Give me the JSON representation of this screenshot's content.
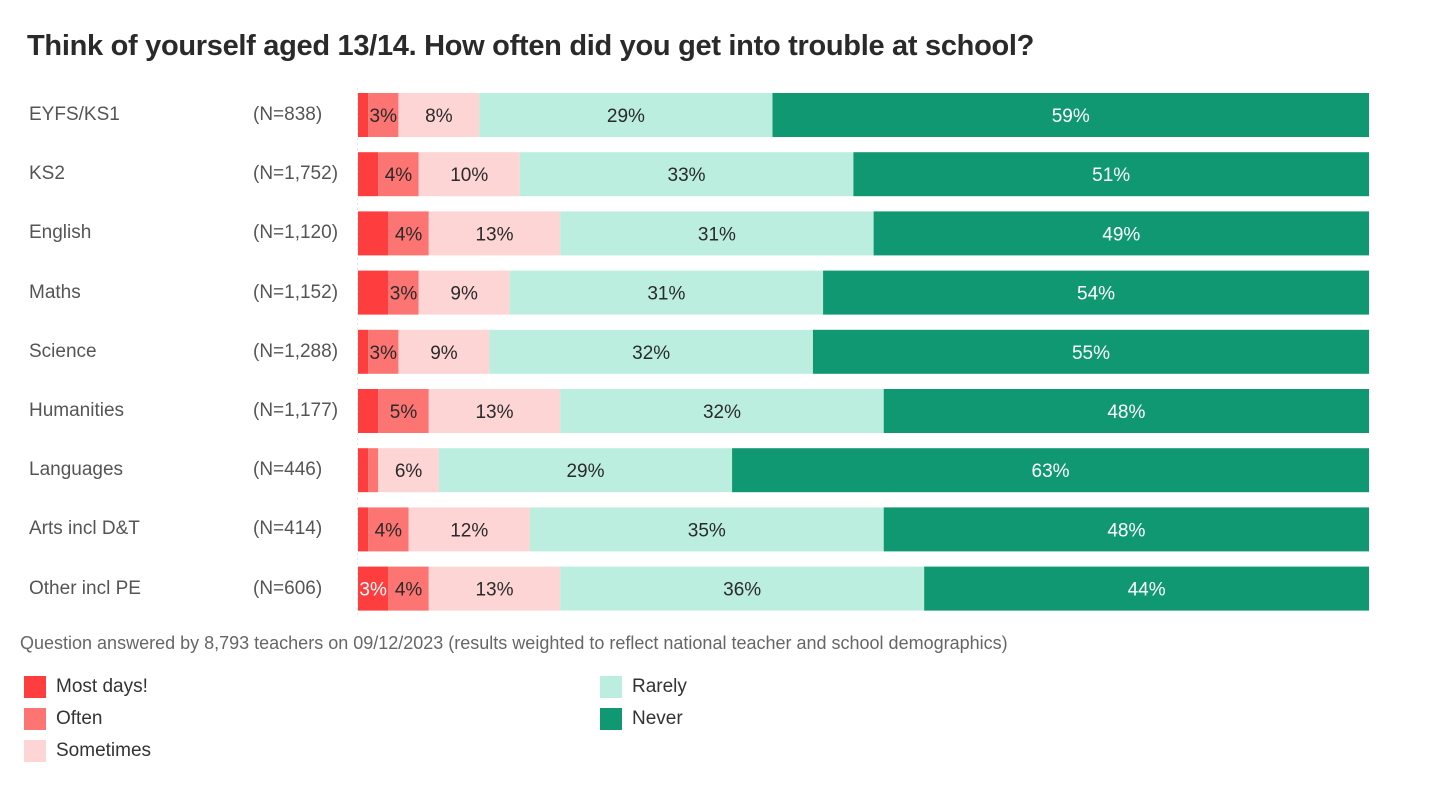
{
  "chart_data": {
    "type": "bar",
    "orientation": "horizontal",
    "stacked": true,
    "normalized": true,
    "title": "Think of yourself aged 13/14. How often did you get into trouble at school?",
    "categories": [
      "EYFS/KS1",
      "KS2",
      "English",
      "Maths",
      "Science",
      "Humanities",
      "Languages",
      "Arts incl D&T",
      "Other incl PE"
    ],
    "n_labels": [
      "(N=838)",
      "(N=1,752)",
      "(N=1,120)",
      "(N=1,152)",
      "(N=1,288)",
      "(N=1,177)",
      "(N=446)",
      "(N=414)",
      "(N=606)"
    ],
    "series": [
      {
        "name": "Most days!",
        "color": "#fe3d3e",
        "label_color": "#ffffff",
        "values": [
          1,
          2,
          3,
          3,
          1,
          2,
          1,
          1,
          3
        ],
        "labels": [
          "",
          "",
          "",
          "",
          "",
          "",
          "",
          "",
          "3%"
        ]
      },
      {
        "name": "Often",
        "color": "#fc7572",
        "label_color": "#2a2a2a",
        "values": [
          3,
          4,
          4,
          3,
          3,
          5,
          1,
          4,
          4
        ],
        "labels": [
          "3%",
          "4%",
          "4%",
          "3%",
          "3%",
          "5%",
          "",
          "4%",
          "4%"
        ]
      },
      {
        "name": "Sometimes",
        "color": "#fcd5d4",
        "label_color": "#2a2a2a",
        "values": [
          8,
          10,
          13,
          9,
          9,
          13,
          6,
          12,
          13
        ],
        "labels": [
          "8%",
          "10%",
          "13%",
          "9%",
          "9%",
          "13%",
          "6%",
          "12%",
          "13%"
        ]
      },
      {
        "name": "Rarely",
        "color": "#bbeedf",
        "label_color": "#2a2a2a",
        "values": [
          29,
          33,
          31,
          31,
          32,
          32,
          29,
          35,
          36
        ],
        "labels": [
          "29%",
          "33%",
          "31%",
          "31%",
          "32%",
          "32%",
          "29%",
          "35%",
          "36%"
        ]
      },
      {
        "name": "Never",
        "color": "#109872",
        "label_color": "#ffffff",
        "values": [
          59,
          51,
          49,
          54,
          55,
          48,
          63,
          48,
          44
        ],
        "labels": [
          "59%",
          "51%",
          "49%",
          "54%",
          "55%",
          "48%",
          "63%",
          "48%",
          "44%"
        ]
      }
    ],
    "xlim": [
      0,
      100
    ],
    "legend_position": "bottom-left",
    "grid": false,
    "note": "Question answered by 8,793 teachers on 09/12/2023 (results weighted to reflect national teacher and school demographics)"
  }
}
